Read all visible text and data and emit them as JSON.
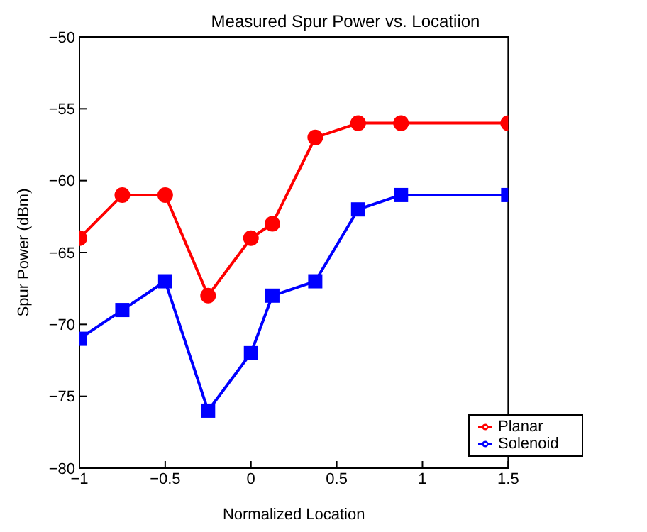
{
  "chart_data": {
    "type": "line",
    "title": "Measured Spur Power vs. Locatiion",
    "xlabel": "Normalized Location",
    "ylabel": "Spur Power (dBm)",
    "x": [
      -1,
      -0.75,
      -0.5,
      -0.25,
      0,
      0.125,
      0.375,
      0.625,
      0.875,
      1.5
    ],
    "series": [
      {
        "name": "Planar",
        "color": "#ff0000",
        "marker": "circle",
        "values": [
          -64,
          -61,
          -61,
          -68,
          -64,
          -63,
          -57,
          -56,
          -56,
          -56
        ]
      },
      {
        "name": "Solenoid",
        "color": "#0000ff",
        "marker": "square",
        "values": [
          -71,
          -69,
          -67,
          -76,
          -72,
          -68,
          -67,
          -62,
          -61,
          -61
        ]
      }
    ],
    "xlim": [
      -1,
      1.5
    ],
    "xticks": [
      {
        "value": -1,
        "label": "−1"
      },
      {
        "value": -0.5,
        "label": "−0.5"
      },
      0,
      0.5,
      1,
      1.5
    ],
    "ylim": [
      -80,
      -50
    ],
    "yticks": [
      {
        "value": -80,
        "label": "−80"
      },
      {
        "value": -75,
        "label": "−75"
      },
      {
        "value": -70,
        "label": "−70"
      },
      {
        "value": -65,
        "label": "−65"
      },
      {
        "value": -60,
        "label": "−60"
      },
      {
        "value": -55,
        "label": "−55"
      },
      {
        "value": -50,
        "label": "−50"
      }
    ],
    "grid": false,
    "legend": "bottom right",
    "line_style": "solid"
  }
}
